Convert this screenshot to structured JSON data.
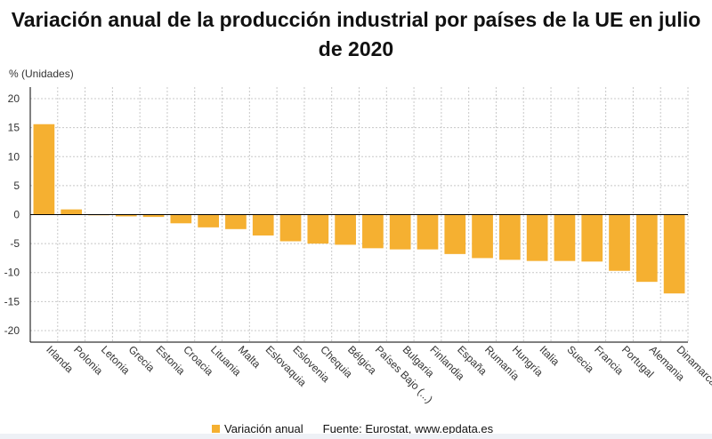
{
  "title": "Variación anual de la producción industrial por países de la UE en julio de 2020",
  "ylabel": "% (Unidades)",
  "legend_label": "Variación anual",
  "source": "Fuente: Eurostat, www.epdata.es",
  "colors": {
    "bar": "#f5b031",
    "grid": "#c8c8c8",
    "axis": "#000000"
  },
  "chart_data": {
    "type": "bar",
    "title": "Variación anual de la producción industrial por países de la UE en julio de 2020",
    "ylabel": "% (Unidades)",
    "xlabel": "",
    "ylim": [
      -22,
      22
    ],
    "yticks": [
      20,
      15,
      10,
      5,
      0,
      -5,
      -10,
      -15,
      -20
    ],
    "grid": true,
    "legend": "bottom",
    "categories": [
      "Irlanda",
      "Polonia",
      "Letonia",
      "Grecia",
      "Estonia",
      "Croacia",
      "Lituania",
      "Malta",
      "Eslovaquia",
      "Eslovenia",
      "Chequia",
      "Bélgica",
      "Países Bajo (...)",
      "Bulgaria",
      "Finlandia",
      "España",
      "Rumanía",
      "Hungría",
      "Italia",
      "Suecia",
      "Francia",
      "Portugal",
      "Alemania",
      "Dinamarca"
    ],
    "series": [
      {
        "name": "Variación anual",
        "values": [
          15.6,
          0.9,
          -0.1,
          -0.3,
          -0.4,
          -1.5,
          -2.2,
          -2.5,
          -3.6,
          -4.6,
          -5.0,
          -5.2,
          -5.8,
          -6.0,
          -6.0,
          -6.8,
          -7.5,
          -7.8,
          -8.0,
          -8.0,
          -8.1,
          -9.7,
          -11.6,
          -13.6
        ]
      }
    ]
  }
}
